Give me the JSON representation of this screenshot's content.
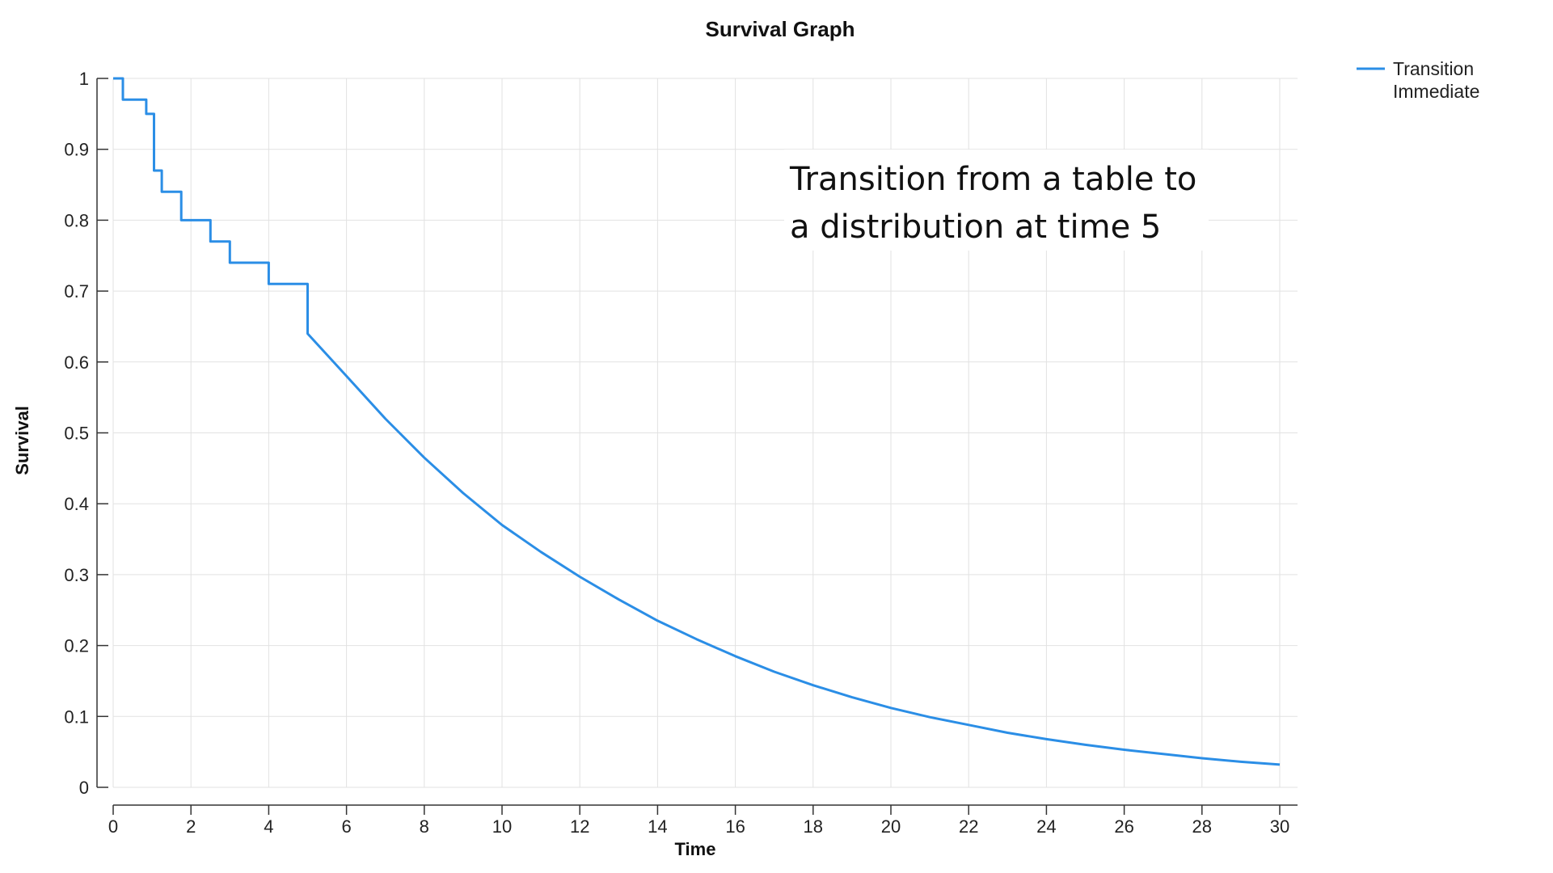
{
  "chart_data": {
    "type": "line",
    "title": "Survival Graph",
    "xlabel": "Time",
    "ylabel": "Survival",
    "xlim": [
      0,
      30
    ],
    "ylim": [
      0,
      1
    ],
    "x_ticks": [
      0,
      2,
      4,
      6,
      8,
      10,
      12,
      14,
      16,
      18,
      20,
      22,
      24,
      26,
      28,
      30
    ],
    "y_ticks": [
      0,
      0.1,
      0.2,
      0.3,
      0.4,
      0.5,
      0.6,
      0.7,
      0.8,
      0.9,
      1
    ],
    "grid": true,
    "legend": {
      "placement": "top-right",
      "entries": [
        "Transition",
        "Immediate"
      ]
    },
    "annotation": {
      "lines": [
        "Transition from a table to",
        "a distribution at time 5"
      ]
    },
    "series": [
      {
        "name": "Transition Immediate",
        "color": "#2b8ee6",
        "step_points": [
          [
            0,
            1.0
          ],
          [
            0.25,
            1.0
          ],
          [
            0.25,
            0.97
          ],
          [
            0.85,
            0.97
          ],
          [
            0.85,
            0.95
          ],
          [
            1.05,
            0.95
          ],
          [
            1.05,
            0.87
          ],
          [
            1.25,
            0.87
          ],
          [
            1.25,
            0.84
          ],
          [
            1.75,
            0.84
          ],
          [
            1.75,
            0.8
          ],
          [
            2.5,
            0.8
          ],
          [
            2.5,
            0.77
          ],
          [
            3.0,
            0.77
          ],
          [
            3.0,
            0.74
          ],
          [
            4.0,
            0.74
          ],
          [
            4.0,
            0.71
          ],
          [
            5.0,
            0.71
          ]
        ],
        "curve": [
          [
            5,
            0.64
          ],
          [
            6,
            0.58
          ],
          [
            7,
            0.52
          ],
          [
            8,
            0.465
          ],
          [
            9,
            0.415
          ],
          [
            10,
            0.37
          ],
          [
            11,
            0.332
          ],
          [
            12,
            0.297
          ],
          [
            13,
            0.265
          ],
          [
            14,
            0.235
          ],
          [
            15,
            0.209
          ],
          [
            16,
            0.185
          ],
          [
            17,
            0.163
          ],
          [
            18,
            0.144
          ],
          [
            19,
            0.127
          ],
          [
            20,
            0.112
          ],
          [
            21,
            0.099
          ],
          [
            22,
            0.088
          ],
          [
            23,
            0.077
          ],
          [
            24,
            0.068
          ],
          [
            25,
            0.06
          ],
          [
            26,
            0.053
          ],
          [
            27,
            0.047
          ],
          [
            28,
            0.041
          ],
          [
            29,
            0.036
          ],
          [
            30,
            0.032
          ]
        ]
      }
    ]
  }
}
